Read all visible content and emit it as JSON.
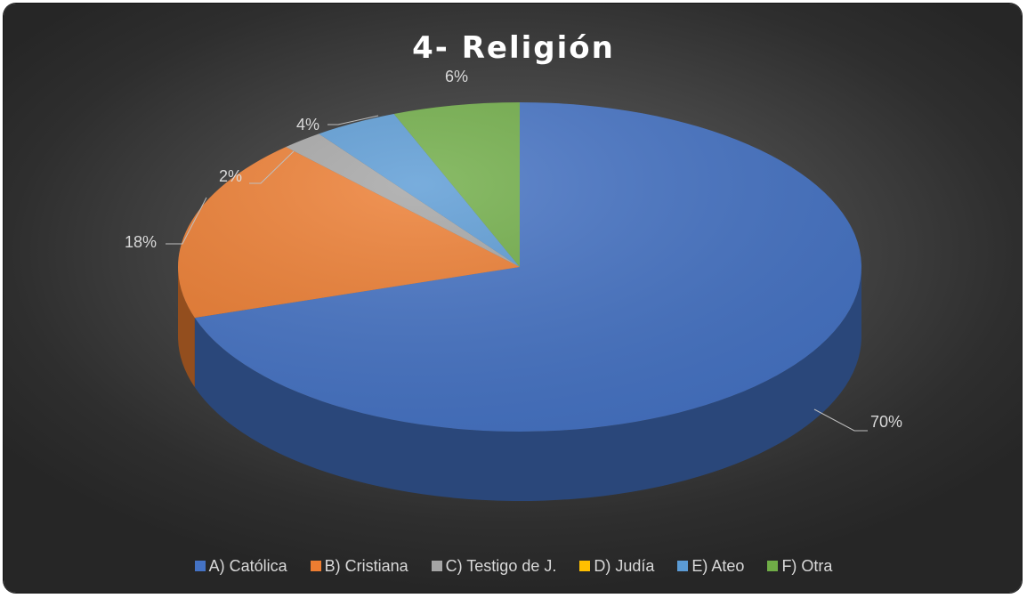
{
  "chart_data": {
    "type": "pie",
    "title": "4- Religión",
    "categories": [
      "A) Católica",
      "B) Cristiana",
      "C) Testigo de J.",
      "D) Judía",
      "E) Ateo",
      "F) Otra"
    ],
    "values": [
      70,
      18,
      2,
      0,
      4,
      6
    ],
    "data_labels": [
      "70%",
      "18%",
      "2%",
      "",
      "4%",
      "6%"
    ],
    "colors": [
      "#4472C4",
      "#ED7D31",
      "#A5A5A5",
      "#FFC000",
      "#5B9BD5",
      "#70AD47"
    ],
    "style": "3d",
    "legend": "bottom"
  }
}
